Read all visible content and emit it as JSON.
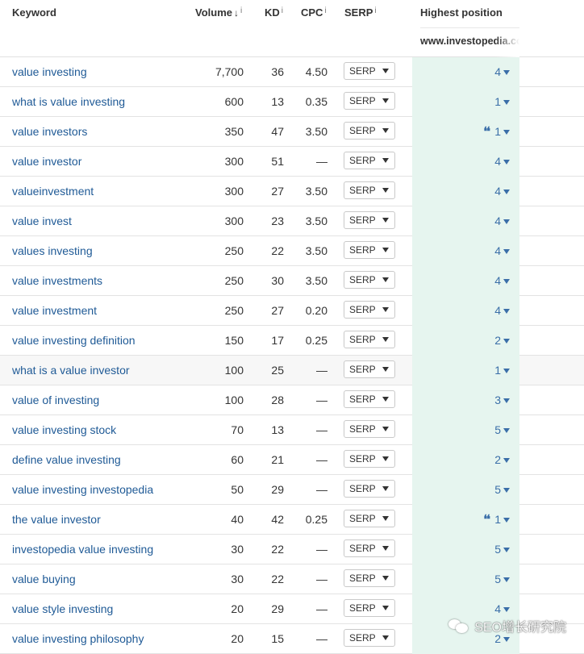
{
  "header": {
    "keyword": "Keyword",
    "volume": "Volume",
    "volume_sort": "↓",
    "kd": "KD",
    "cpc": "CPC",
    "serp": "SERP",
    "info": "i",
    "highest_position": "Highest position",
    "site": "www.investopedia.com"
  },
  "colors": {
    "link": "#1f5a96",
    "position": "#3a6ea8",
    "highlight_bg": "#e6f5ef"
  },
  "rows": [
    {
      "keyword": "value investing",
      "volume": "7,700",
      "kd": "36",
      "cpc": "4.50",
      "serp": "SERP",
      "position": "4",
      "quote": ""
    },
    {
      "keyword": "what is value investing",
      "volume": "600",
      "kd": "13",
      "cpc": "0.35",
      "serp": "SERP",
      "position": "1",
      "quote": ""
    },
    {
      "keyword": "value investors",
      "volume": "350",
      "kd": "47",
      "cpc": "3.50",
      "serp": "SERP",
      "position": "1",
      "quote": "❛❛"
    },
    {
      "keyword": "value investor",
      "volume": "300",
      "kd": "51",
      "cpc": "—",
      "serp": "SERP",
      "position": "4",
      "quote": ""
    },
    {
      "keyword": "valueinvestment",
      "volume": "300",
      "kd": "27",
      "cpc": "3.50",
      "serp": "SERP",
      "position": "4",
      "quote": ""
    },
    {
      "keyword": "value invest",
      "volume": "300",
      "kd": "23",
      "cpc": "3.50",
      "serp": "SERP",
      "position": "4",
      "quote": ""
    },
    {
      "keyword": "values investing",
      "volume": "250",
      "kd": "22",
      "cpc": "3.50",
      "serp": "SERP",
      "position": "4",
      "quote": ""
    },
    {
      "keyword": "value investments",
      "volume": "250",
      "kd": "30",
      "cpc": "3.50",
      "serp": "SERP",
      "position": "4",
      "quote": ""
    },
    {
      "keyword": "value investment",
      "volume": "250",
      "kd": "27",
      "cpc": "0.20",
      "serp": "SERP",
      "position": "4",
      "quote": ""
    },
    {
      "keyword": "value investing definition",
      "volume": "150",
      "kd": "17",
      "cpc": "0.25",
      "serp": "SERP",
      "position": "2",
      "quote": ""
    },
    {
      "keyword": "what is a value investor",
      "volume": "100",
      "kd": "25",
      "cpc": "—",
      "serp": "SERP",
      "position": "1",
      "quote": ""
    },
    {
      "keyword": "value of investing",
      "volume": "100",
      "kd": "28",
      "cpc": "—",
      "serp": "SERP",
      "position": "3",
      "quote": ""
    },
    {
      "keyword": "value investing stock",
      "volume": "70",
      "kd": "13",
      "cpc": "—",
      "serp": "SERP",
      "position": "5",
      "quote": ""
    },
    {
      "keyword": "define value investing",
      "volume": "60",
      "kd": "21",
      "cpc": "—",
      "serp": "SERP",
      "position": "2",
      "quote": ""
    },
    {
      "keyword": "value investing investopedia",
      "volume": "50",
      "kd": "29",
      "cpc": "—",
      "serp": "SERP",
      "position": "5",
      "quote": ""
    },
    {
      "keyword": "the value investor",
      "volume": "40",
      "kd": "42",
      "cpc": "0.25",
      "serp": "SERP",
      "position": "1",
      "quote": "❛❛"
    },
    {
      "keyword": "investopedia value investing",
      "volume": "30",
      "kd": "22",
      "cpc": "—",
      "serp": "SERP",
      "position": "5",
      "quote": ""
    },
    {
      "keyword": "value buying",
      "volume": "30",
      "kd": "22",
      "cpc": "—",
      "serp": "SERP",
      "position": "5",
      "quote": ""
    },
    {
      "keyword": "value style investing",
      "volume": "20",
      "kd": "29",
      "cpc": "—",
      "serp": "SERP",
      "position": "4",
      "quote": ""
    },
    {
      "keyword": "value investing philosophy",
      "volume": "20",
      "kd": "15",
      "cpc": "—",
      "serp": "SERP",
      "position": "2",
      "quote": ""
    }
  ],
  "watermark": {
    "text": "SEO增长研究院",
    "icon": "wechat-icon"
  }
}
